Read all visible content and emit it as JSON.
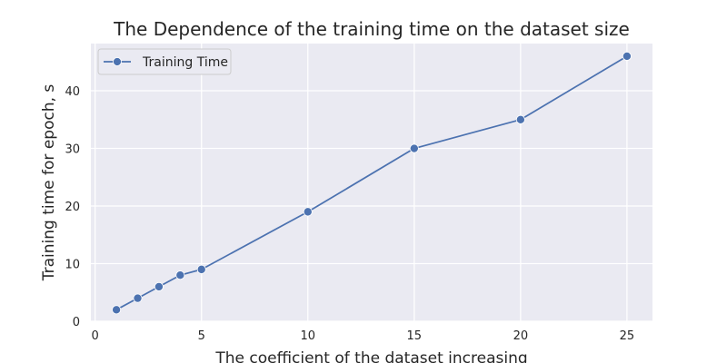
{
  "chart_data": {
    "type": "line",
    "title": "The Dependence of the training time on the dataset size",
    "xlabel": "The coefficient of the dataset increasing",
    "ylabel": "Training time for epoch, s",
    "xlim": [
      -0.2,
      26.2
    ],
    "ylim": [
      0,
      48.2
    ],
    "xticks": [
      0,
      5,
      10,
      15,
      20,
      25
    ],
    "yticks": [
      0,
      10,
      20,
      30,
      40
    ],
    "grid": true,
    "legend_position": "top-left",
    "series": [
      {
        "name": "Training Time",
        "color": "#4c72b0",
        "marker": "circle",
        "x": [
          1,
          2,
          3,
          4,
          5,
          10,
          15,
          20,
          25
        ],
        "y": [
          2,
          4,
          6,
          8,
          9,
          19,
          30,
          35,
          46
        ]
      }
    ]
  }
}
